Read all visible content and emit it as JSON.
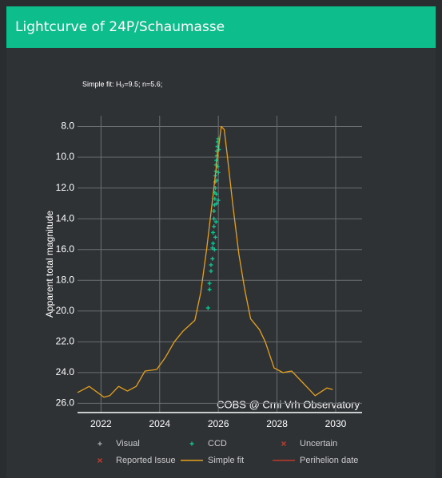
{
  "header": {
    "title": "Lightcurve of 24P/Schaumasse"
  },
  "chart_data": {
    "type": "scatter-line",
    "subtitle": "Simple fit: H₀=9.5; n=5.6;",
    "annotation": "COBS @ Crni Vrh Observatory",
    "ylabel": "Apparent total magnitude",
    "xlim": [
      2021.2,
      2030.9
    ],
    "xticks": [
      2022,
      2024,
      2026,
      2028,
      2030
    ],
    "ylim": [
      26.6,
      7.3
    ],
    "y_inverted": true,
    "yticks": [
      {
        "value": 8,
        "label": "8.0"
      },
      {
        "value": 10,
        "label": "10.0"
      },
      {
        "value": 12,
        "label": "12.0"
      },
      {
        "value": 14,
        "label": "14.0"
      },
      {
        "value": 16,
        "label": "16.0"
      },
      {
        "value": 18,
        "label": "18.0"
      },
      {
        "value": 20,
        "label": "20.0"
      },
      {
        "value": 22,
        "label": "22.0"
      },
      {
        "value": 24,
        "label": "24.0"
      },
      {
        "value": 26,
        "label": "26.0"
      }
    ],
    "grid": true,
    "series": [
      {
        "name": "Visual",
        "color": "#9aa0a6",
        "marker": "plus",
        "x": [],
        "values": []
      },
      {
        "name": "CCD",
        "color": "#12c08f",
        "marker": "plus",
        "x": [
          2025.65,
          2025.7,
          2025.7,
          2025.75,
          2025.75,
          2025.8,
          2025.8,
          2025.82,
          2025.82,
          2025.85,
          2025.85,
          2025.85,
          2025.87,
          2025.88,
          2025.88,
          2025.9,
          2025.9,
          2025.9,
          2025.92,
          2025.92,
          2025.93,
          2025.95,
          2025.95,
          2025.97,
          2025.98,
          2026.0,
          2025.97,
          2025.95,
          2025.93,
          2026.0,
          2025.9,
          2025.92,
          2025.95,
          2026.0,
          2026.02,
          2025.87
        ],
        "values": [
          19.8,
          18.6,
          18.2,
          17.4,
          17.0,
          16.6,
          15.9,
          15.6,
          14.9,
          14.5,
          14.0,
          13.5,
          13.1,
          12.7,
          12.3,
          12.0,
          11.6,
          11.2,
          10.9,
          10.5,
          10.2,
          9.9,
          9.6,
          9.3,
          9.0,
          8.8,
          10.6,
          11.5,
          12.4,
          12.8,
          15.2,
          14.2,
          13.0,
          11.0,
          9.5,
          16.0
        ]
      },
      {
        "name": "Uncertain",
        "color": "#c0392b",
        "marker": "cross",
        "x": [],
        "values": []
      },
      {
        "name": "Reported Issue",
        "color": "#c0392b",
        "marker": "cross",
        "x": [],
        "values": []
      },
      {
        "name": "Simple fit",
        "color": "#e6a11c",
        "marker": "line",
        "x": [
          2021.2,
          2021.6,
          2022.1,
          2022.3,
          2022.6,
          2022.9,
          2023.2,
          2023.5,
          2023.9,
          2024.2,
          2024.5,
          2024.8,
          2025.2,
          2025.4,
          2025.6,
          2025.8,
          2026.0,
          2026.1,
          2026.2,
          2026.3,
          2026.5,
          2026.7,
          2026.9,
          2027.1,
          2027.4,
          2027.6,
          2027.9,
          2028.2,
          2028.5,
          2028.9,
          2029.3,
          2029.7,
          2029.9
        ],
        "values": [
          25.3,
          24.9,
          25.6,
          25.5,
          24.9,
          25.2,
          24.9,
          23.9,
          23.8,
          23.0,
          22.0,
          21.3,
          20.6,
          18.8,
          16.0,
          12.8,
          9.5,
          8.0,
          8.2,
          9.8,
          13.2,
          16.3,
          18.6,
          20.5,
          21.2,
          22.0,
          23.7,
          24.0,
          23.9,
          24.7,
          25.5,
          25.0,
          25.1
        ]
      },
      {
        "name": "Perihelion date",
        "color": "#c0392b",
        "marker": "line",
        "x": [],
        "values": []
      }
    ]
  }
}
